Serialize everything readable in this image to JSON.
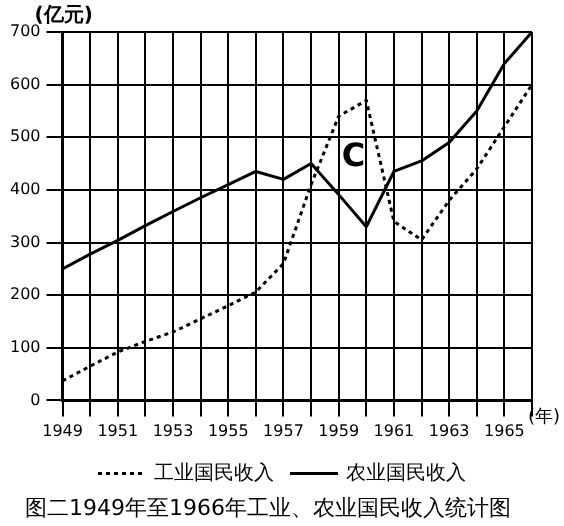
{
  "chart_data": {
    "type": "line",
    "title": "图二1949年至1966年工业、农业国民收入统计图",
    "ylabel": "(亿元)",
    "xlabel": "(年)",
    "x": [
      1949,
      1950,
      1951,
      1952,
      1953,
      1954,
      1955,
      1956,
      1957,
      1958,
      1959,
      1960,
      1961,
      1962,
      1963,
      1964,
      1965,
      1966
    ],
    "series": [
      {
        "name": "工业国民收入",
        "color": "#000000",
        "line_style": "dotted",
        "values": [
          37,
          65,
          92,
          112,
          130,
          155,
          180,
          206,
          260,
          410,
          540,
          570,
          340,
          305,
          380,
          440,
          520,
          600
        ]
      },
      {
        "name": "农业国民收入",
        "color": "#000000",
        "line_style": "solid",
        "values": [
          250,
          278,
          304,
          332,
          359,
          385,
          410,
          435,
          420,
          450,
          391,
          330,
          435,
          455,
          490,
          550,
          640,
          700
        ]
      }
    ],
    "annotations": [
      "C"
    ],
    "xlim": [
      1949,
      1966
    ],
    "xticks": [
      1949,
      {
        "value": 1950,
        "label": null
      },
      1951,
      {
        "value": 1952,
        "label": null
      },
      1953,
      {
        "value": 1954,
        "label": null
      },
      1955,
      {
        "value": 1956,
        "label": null
      },
      1957,
      {
        "value": 1958,
        "label": null
      },
      1959,
      {
        "value": 1960,
        "label": null
      },
      1961,
      {
        "value": 1962,
        "label": null
      },
      1963,
      {
        "value": 1964,
        "label": null
      },
      1965,
      {
        "value": 1966,
        "label": null
      }
    ],
    "ylim": [
      0,
      700
    ],
    "yticks": [
      0,
      100,
      200,
      300,
      400,
      500,
      600,
      700
    ],
    "grid": true,
    "legend": "bottom",
    "marker": "none"
  }
}
